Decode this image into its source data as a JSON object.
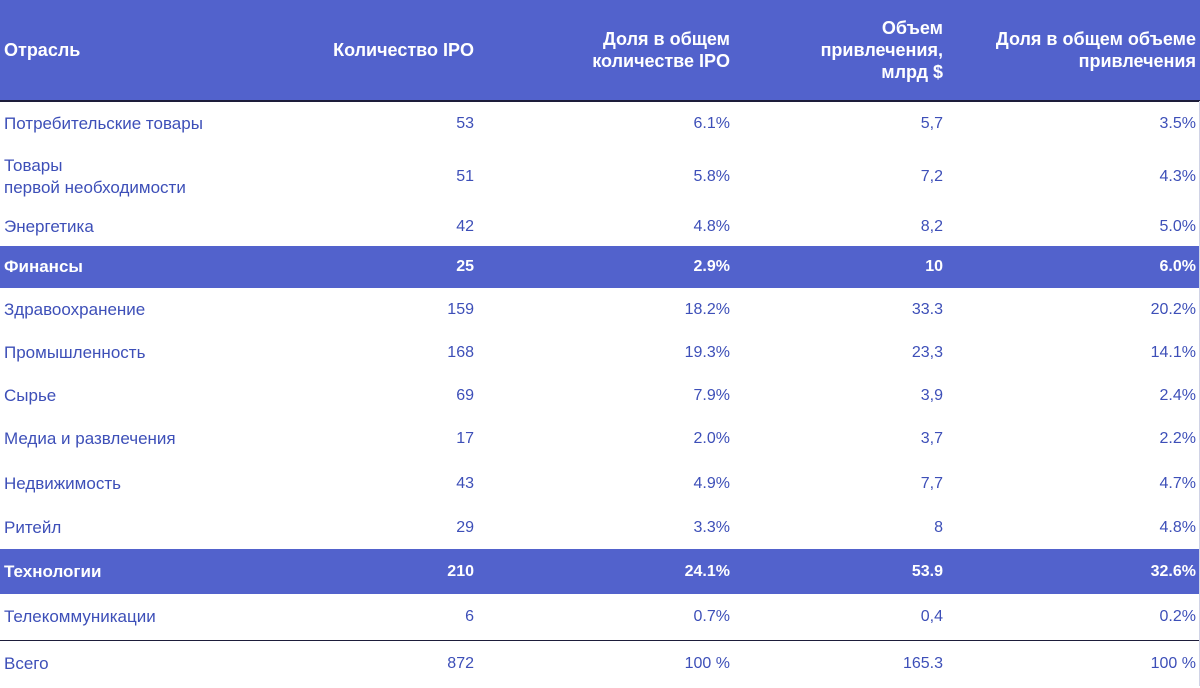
{
  "table": {
    "headers": [
      [
        "Отрасль"
      ],
      [
        "Количество IPO"
      ],
      [
        "Доля в общем",
        "количестве IPO"
      ],
      [
        "Объем",
        "привлечения,",
        "млрд $"
      ],
      [
        "Доля в общем объеме",
        "привлечения"
      ]
    ],
    "rows": [
      {
        "industry": [
          "Потребительские товары"
        ],
        "count": "53",
        "share_count": "6.1%",
        "volume": "5,7",
        "share_volume": "3.5%",
        "highlight": false
      },
      {
        "industry": [
          "Товары",
          "первой необходимости"
        ],
        "count": "51",
        "share_count": "5.8%",
        "volume": "7,2",
        "share_volume": "4.3%",
        "highlight": false
      },
      {
        "industry": [
          "Энергетика"
        ],
        "count": "42",
        "share_count": "4.8%",
        "volume": "8,2",
        "share_volume": "5.0%",
        "highlight": false
      },
      {
        "industry": [
          "Финансы"
        ],
        "count": "25",
        "share_count": "2.9%",
        "volume": "10",
        "share_volume": "6.0%",
        "highlight": true
      },
      {
        "industry": [
          "Здравоохранение"
        ],
        "count": "159",
        "share_count": "18.2%",
        "volume": "33.3",
        "share_volume": "20.2%",
        "highlight": false
      },
      {
        "industry": [
          "Промышленность"
        ],
        "count": "168",
        "share_count": "19.3%",
        "volume": "23,3",
        "share_volume": "14.1%",
        "highlight": false
      },
      {
        "industry": [
          "Сырье"
        ],
        "count": "69",
        "share_count": "7.9%",
        "volume": "3,9",
        "share_volume": "2.4%",
        "highlight": false
      },
      {
        "industry": [
          "Медиа и развлечения"
        ],
        "count": "17",
        "share_count": "2.0%",
        "volume": "3,7",
        "share_volume": "2.2%",
        "highlight": false
      },
      {
        "industry": [
          "Недвижимость"
        ],
        "count": "43",
        "share_count": "4.9%",
        "volume": "7,7",
        "share_volume": "4.7%",
        "highlight": false
      },
      {
        "industry": [
          "Ритейл"
        ],
        "count": "29",
        "share_count": "3.3%",
        "volume": "8",
        "share_volume": "4.8%",
        "highlight": false
      },
      {
        "industry": [
          "Технологии"
        ],
        "count": "210",
        "share_count": "24.1%",
        "volume": "53.9",
        "share_volume": "32.6%",
        "highlight": true
      },
      {
        "industry": [
          "Телекоммуникации"
        ],
        "count": "6",
        "share_count": "0.7%",
        "volume": "0,4",
        "share_volume": "0.2%",
        "highlight": false
      }
    ],
    "total": {
      "industry": [
        "Всего"
      ],
      "count": "872",
      "share_count": "100 %",
      "volume": "165.3",
      "share_volume": "100 %"
    }
  },
  "colors": {
    "header_bg": "#5262cc",
    "highlight_bg": "#5262cc",
    "text": "#3d4fb8",
    "header_text": "#ffffff"
  }
}
